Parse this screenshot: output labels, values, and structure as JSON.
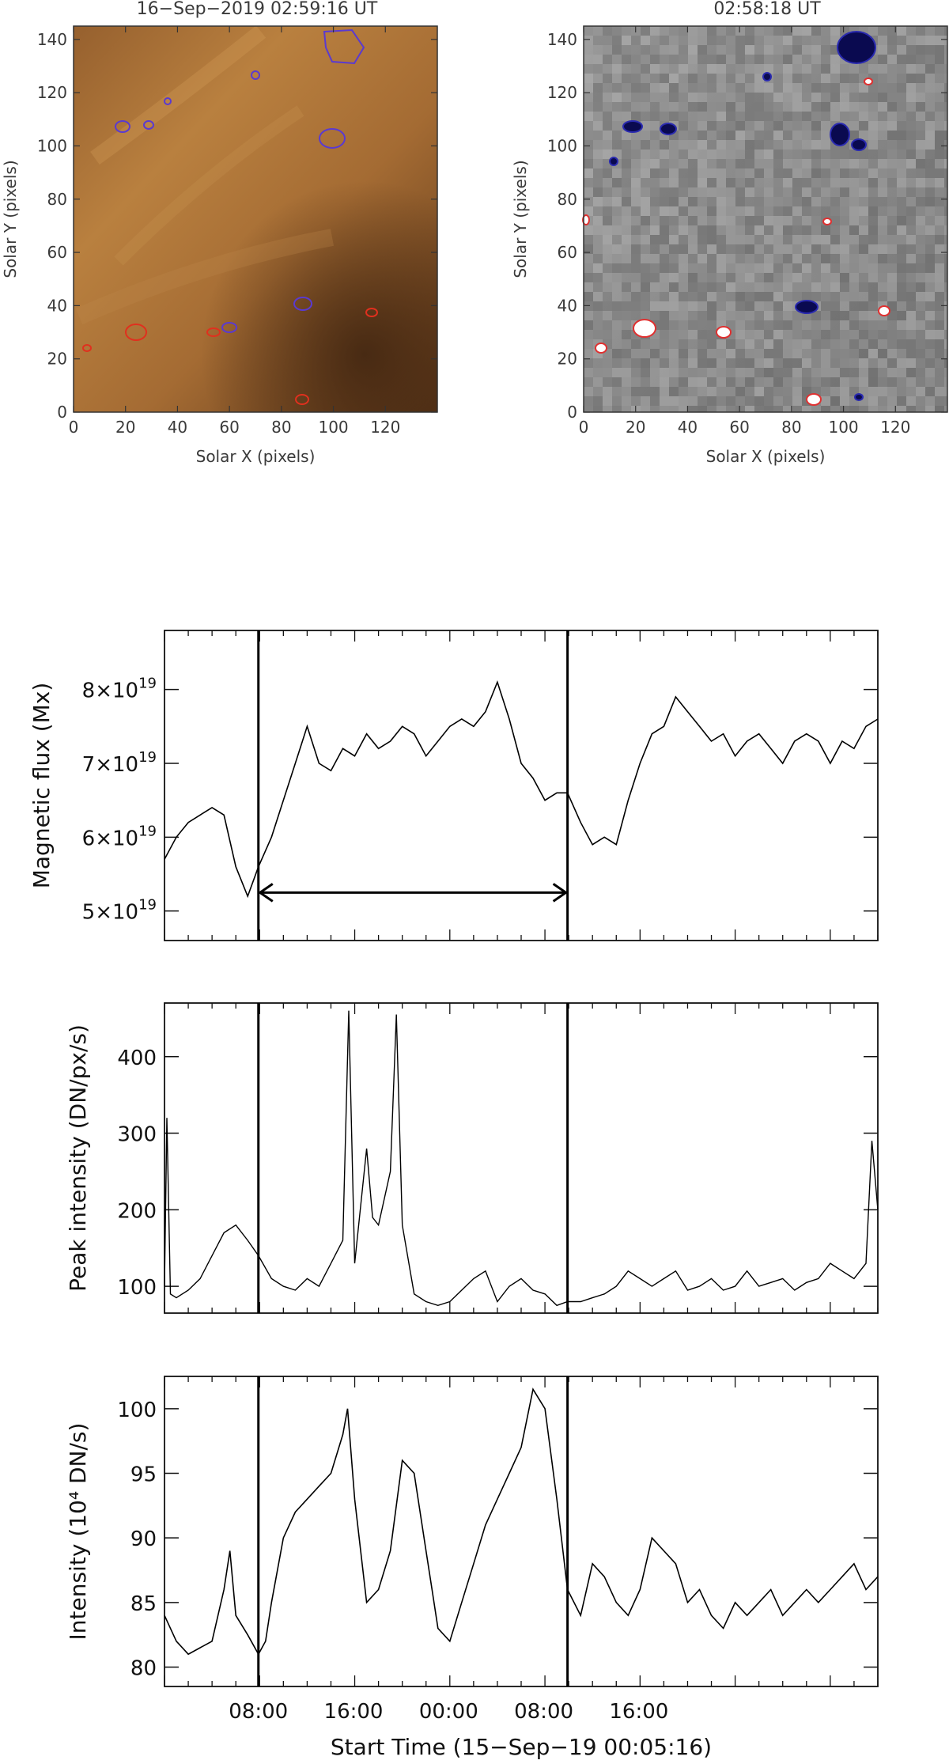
{
  "chart_data": [
    {
      "type": "heatmap",
      "title": "16−Sep−2019 02:59:16 UT",
      "xlabel": "Solar X (pixels)",
      "ylabel": "Solar Y (pixels)",
      "xlim": [
        0,
        140
      ],
      "ylim": [
        0,
        145
      ],
      "xticks": [
        "0",
        "20",
        "40",
        "60",
        "80",
        "100",
        "120"
      ],
      "yticks": [
        "0",
        "20",
        "40",
        "60",
        "80",
        "100",
        "120",
        "140"
      ],
      "colors": {
        "background": "#a86a32",
        "positive_contour": "#e0301e",
        "negative_contour": "#5a3ad0"
      }
    },
    {
      "type": "heatmap",
      "title": "02:58:18 UT",
      "xlabel": "Solar X (pixels)",
      "ylabel": "Solar Y (pixels)",
      "xlim": [
        0,
        140
      ],
      "ylim": [
        0,
        145
      ],
      "xticks": [
        "0",
        "20",
        "40",
        "60",
        "80",
        "100",
        "120"
      ],
      "yticks": [
        "0",
        "20",
        "40",
        "60",
        "80",
        "100",
        "120",
        "140"
      ],
      "colors": {
        "background": "#8c8c8c",
        "positive_contour": "#e03030",
        "negative_contour": "#0a0a60"
      }
    },
    {
      "type": "line",
      "ylabel": "Magnetic flux (Mx)",
      "ylim": [
        4.6,
        8.8
      ],
      "y_scale_label": "×10",
      "y_exponent": "19",
      "yticks": [
        5,
        6,
        7,
        8
      ],
      "xlim": [
        0,
        60
      ],
      "vlines_hours": [
        7.9,
        33.9
      ],
      "arrow_hours": [
        7.9,
        33.9
      ],
      "arrow_value": 5.25,
      "series": [
        {
          "x": [
            0,
            1,
            2,
            3,
            4,
            5,
            6,
            7,
            7.9,
            9,
            10,
            11,
            12,
            13,
            14,
            15,
            16,
            17,
            18,
            19,
            20,
            21,
            22,
            23,
            24,
            25,
            26,
            27,
            28,
            29,
            30,
            31,
            32,
            33,
            33.9,
            35,
            36,
            37,
            38,
            39,
            40,
            41,
            42,
            43,
            44,
            45,
            46,
            47,
            48,
            49,
            50,
            51,
            52,
            53,
            54,
            55,
            56,
            57,
            58,
            59,
            60
          ],
          "y": [
            5.7,
            6.0,
            6.2,
            6.3,
            6.4,
            6.3,
            5.6,
            5.2,
            5.6,
            6.0,
            6.5,
            7.0,
            7.5,
            7.0,
            6.9,
            7.2,
            7.1,
            7.4,
            7.2,
            7.3,
            7.5,
            7.4,
            7.1,
            7.3,
            7.5,
            7.6,
            7.5,
            7.7,
            8.1,
            7.6,
            7.0,
            6.8,
            6.5,
            6.6,
            6.6,
            6.2,
            5.9,
            6.0,
            5.9,
            6.5,
            7.0,
            7.4,
            7.5,
            7.9,
            7.7,
            7.5,
            7.3,
            7.4,
            7.1,
            7.3,
            7.4,
            7.2,
            7.0,
            7.3,
            7.4,
            7.3,
            7.0,
            7.3,
            7.2,
            7.5,
            7.6
          ]
        }
      ]
    },
    {
      "type": "line",
      "ylabel": "Peak intensity (DN/px/s)",
      "ylim": [
        65,
        470
      ],
      "yticks": [
        100,
        200,
        300,
        400
      ],
      "xlim": [
        0,
        60
      ],
      "vlines_hours": [
        7.9,
        33.9
      ],
      "series": [
        {
          "x": [
            0,
            0.2,
            0.5,
            1,
            2,
            3,
            4,
            5,
            6,
            7,
            7.9,
            9,
            10,
            11,
            12,
            13,
            14,
            15,
            15.5,
            16,
            17,
            17.5,
            18,
            19,
            19.5,
            20,
            21,
            22,
            23,
            24,
            25,
            26,
            27,
            28,
            29,
            30,
            31,
            32,
            33,
            33.9,
            35,
            36,
            37,
            38,
            39,
            40,
            41,
            42,
            43,
            44,
            45,
            46,
            47,
            48,
            49,
            50,
            51,
            52,
            53,
            54,
            55,
            56,
            57,
            58,
            59,
            59.5,
            60
          ],
          "y": [
            100,
            320,
            90,
            85,
            95,
            110,
            140,
            170,
            180,
            160,
            140,
            110,
            100,
            95,
            110,
            100,
            130,
            160,
            460,
            130,
            280,
            190,
            180,
            250,
            455,
            180,
            90,
            80,
            75,
            80,
            95,
            110,
            120,
            80,
            100,
            110,
            95,
            90,
            75,
            80,
            80,
            85,
            90,
            100,
            120,
            110,
            100,
            110,
            120,
            95,
            100,
            110,
            95,
            100,
            120,
            100,
            105,
            110,
            95,
            105,
            110,
            130,
            120,
            110,
            130,
            290,
            200
          ]
        }
      ]
    },
    {
      "type": "line",
      "ylabel": "Intensity (10⁴ DN/s)",
      "ylim": [
        78.5,
        102.5
      ],
      "yticks": [
        80,
        85,
        90,
        95,
        100
      ],
      "xlabel": "Start Time (15−Sep−19 00:05:16)",
      "xlim": [
        0,
        60
      ],
      "xticks": [
        {
          "hour": 7.9,
          "label": "08:00"
        },
        {
          "hour": 15.9,
          "label": "16:00"
        },
        {
          "hour": 23.9,
          "label": "00:00"
        },
        {
          "hour": 31.9,
          "label": "08:00"
        },
        {
          "hour": 39.9,
          "label": "16:00"
        }
      ],
      "vlines_hours": [
        7.9,
        33.9
      ],
      "series": [
        {
          "x": [
            0,
            1,
            2,
            3,
            4,
            5,
            5.5,
            6,
            7,
            7.9,
            8.5,
            9,
            10,
            11,
            12,
            13,
            14,
            15,
            15.4,
            16,
            17,
            18,
            19,
            20,
            21,
            22,
            22.5,
            23,
            24,
            25,
            26,
            27,
            28,
            29,
            30,
            31,
            32,
            33,
            33.9,
            35,
            36,
            37,
            38,
            39,
            40,
            41,
            42,
            43,
            44,
            45,
            46,
            47,
            48,
            49,
            50,
            51,
            52,
            53,
            54,
            55,
            56,
            57,
            58,
            59,
            60
          ],
          "y": [
            84,
            82,
            81,
            81.5,
            82,
            86,
            89,
            84,
            82.5,
            81,
            82,
            85,
            90,
            92,
            93,
            94,
            95,
            98,
            100,
            93,
            85,
            86,
            89,
            96,
            95,
            89,
            86,
            83,
            82,
            85,
            88,
            91,
            93,
            95,
            97,
            101.5,
            100,
            93,
            86,
            84,
            88,
            87,
            85,
            84,
            86,
            90,
            89,
            88,
            85,
            86,
            84,
            83,
            85,
            84,
            85,
            86,
            84,
            85,
            86,
            85,
            86,
            87,
            88,
            86,
            87
          ]
        }
      ]
    }
  ]
}
